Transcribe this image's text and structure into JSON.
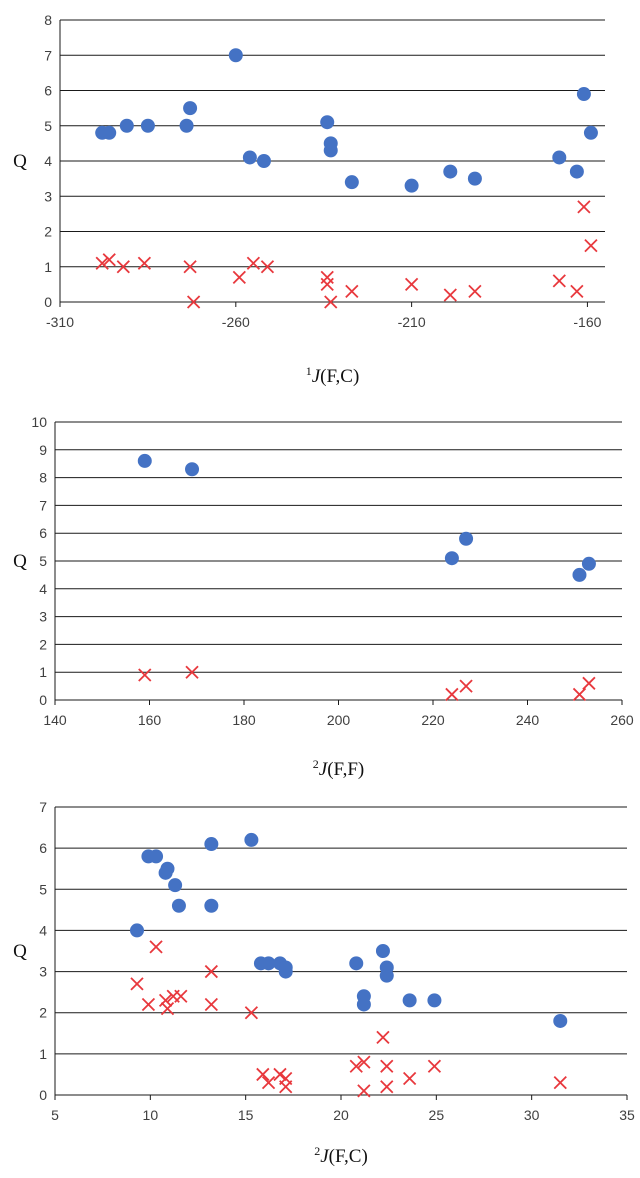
{
  "colors": {
    "circle": "#4472c4",
    "cross": "#e8383d",
    "grid": "#1a1a1a",
    "tick_text": "#404040"
  },
  "chart_data": [
    {
      "type": "scatter",
      "title": "",
      "ylabel": "Q",
      "xlabel": {
        "sup": "1",
        "italic": "J",
        "rest": "(F,C)"
      },
      "xlim": [
        -310,
        -155
      ],
      "ylim": [
        0,
        8
      ],
      "xticks": [
        -310,
        -260,
        -210,
        -160
      ],
      "yticks": [
        0,
        1,
        2,
        3,
        4,
        5,
        6,
        7,
        8
      ],
      "grid": "horizontal",
      "series": [
        {
          "marker": "circle",
          "points": [
            [
              -298,
              4.8
            ],
            [
              -296,
              4.8
            ],
            [
              -291,
              5.0
            ],
            [
              -285,
              5.0
            ],
            [
              -274,
              5.0
            ],
            [
              -273,
              5.5
            ],
            [
              -260,
              7.0
            ],
            [
              -256,
              4.1
            ],
            [
              -252,
              4.0
            ],
            [
              -234,
              5.1
            ],
            [
              -233,
              4.5
            ],
            [
              -233,
              4.3
            ],
            [
              -227,
              3.4
            ],
            [
              -210,
              3.3
            ],
            [
              -199,
              3.7
            ],
            [
              -192,
              3.5
            ],
            [
              -168,
              4.1
            ],
            [
              -163,
              3.7
            ],
            [
              -161,
              5.9
            ],
            [
              -159,
              4.8
            ]
          ]
        },
        {
          "marker": "cross",
          "points": [
            [
              -298,
              1.1
            ],
            [
              -296,
              1.2
            ],
            [
              -292,
              1.0
            ],
            [
              -286,
              1.1
            ],
            [
              -273,
              1.0
            ],
            [
              -272,
              0.0
            ],
            [
              -259,
              0.7
            ],
            [
              -255,
              1.1
            ],
            [
              -251,
              1.0
            ],
            [
              -234,
              0.7
            ],
            [
              -234,
              0.5
            ],
            [
              -233,
              0.0
            ],
            [
              -227,
              0.3
            ],
            [
              -210,
              0.5
            ],
            [
              -199,
              0.2
            ],
            [
              -192,
              0.3
            ],
            [
              -168,
              0.6
            ],
            [
              -163,
              0.3
            ],
            [
              -161,
              2.7
            ],
            [
              -159,
              1.6
            ]
          ]
        }
      ]
    },
    {
      "type": "scatter",
      "title": "",
      "ylabel": "Q",
      "xlabel": {
        "sup": "2",
        "italic": "J",
        "rest": "(F,F)"
      },
      "xlim": [
        140,
        260
      ],
      "ylim": [
        0,
        10
      ],
      "xticks": [
        140,
        160,
        180,
        200,
        220,
        240,
        260
      ],
      "yticks": [
        0,
        1,
        2,
        3,
        4,
        5,
        6,
        7,
        8,
        9,
        10
      ],
      "grid": "horizontal",
      "series": [
        {
          "marker": "circle",
          "points": [
            [
              159,
              8.6
            ],
            [
              169,
              8.3
            ],
            [
              224,
              5.1
            ],
            [
              227,
              5.8
            ],
            [
              251,
              4.5
            ],
            [
              253,
              4.9
            ]
          ]
        },
        {
          "marker": "cross",
          "points": [
            [
              159,
              0.9
            ],
            [
              169,
              1.0
            ],
            [
              224,
              0.2
            ],
            [
              227,
              0.5
            ],
            [
              251,
              0.2
            ],
            [
              253,
              0.6
            ]
          ]
        }
      ]
    },
    {
      "type": "scatter",
      "title": "",
      "ylabel": "Q",
      "xlabel": {
        "sup": "2",
        "italic": "J",
        "rest": "(F,C)"
      },
      "xlim": [
        5,
        35
      ],
      "ylim": [
        0,
        7
      ],
      "xticks": [
        5,
        10,
        15,
        20,
        25,
        30,
        35
      ],
      "yticks": [
        0,
        1,
        2,
        3,
        4,
        5,
        6,
        7
      ],
      "grid": "horizontal",
      "series": [
        {
          "marker": "circle",
          "points": [
            [
              9.3,
              4.0
            ],
            [
              9.9,
              5.8
            ],
            [
              10.3,
              5.8
            ],
            [
              10.8,
              5.4
            ],
            [
              10.9,
              5.5
            ],
            [
              11.3,
              5.1
            ],
            [
              11.5,
              4.6
            ],
            [
              13.2,
              6.1
            ],
            [
              13.2,
              4.6
            ],
            [
              15.3,
              6.2
            ],
            [
              15.8,
              3.2
            ],
            [
              16.2,
              3.2
            ],
            [
              16.8,
              3.2
            ],
            [
              17.1,
              3.1
            ],
            [
              17.1,
              3.0
            ],
            [
              20.8,
              3.2
            ],
            [
              21.2,
              2.4
            ],
            [
              21.2,
              2.2
            ],
            [
              22.2,
              3.5
            ],
            [
              22.4,
              3.1
            ],
            [
              22.4,
              2.9
            ],
            [
              23.6,
              2.3
            ],
            [
              24.9,
              2.3
            ],
            [
              31.5,
              1.8
            ]
          ]
        },
        {
          "marker": "cross",
          "points": [
            [
              9.3,
              2.7
            ],
            [
              9.9,
              2.2
            ],
            [
              10.3,
              3.6
            ],
            [
              10.8,
              2.3
            ],
            [
              10.9,
              2.1
            ],
            [
              11.2,
              2.4
            ],
            [
              11.6,
              2.4
            ],
            [
              13.2,
              3.0
            ],
            [
              13.2,
              2.2
            ],
            [
              15.3,
              2.0
            ],
            [
              15.9,
              0.5
            ],
            [
              16.2,
              0.3
            ],
            [
              16.8,
              0.5
            ],
            [
              17.1,
              0.4
            ],
            [
              17.1,
              0.2
            ],
            [
              20.8,
              0.7
            ],
            [
              21.2,
              0.8
            ],
            [
              21.2,
              0.1
            ],
            [
              22.2,
              1.4
            ],
            [
              22.4,
              0.7
            ],
            [
              22.4,
              0.2
            ],
            [
              23.6,
              0.4
            ],
            [
              24.9,
              0.7
            ],
            [
              31.5,
              0.3
            ]
          ]
        }
      ]
    }
  ]
}
